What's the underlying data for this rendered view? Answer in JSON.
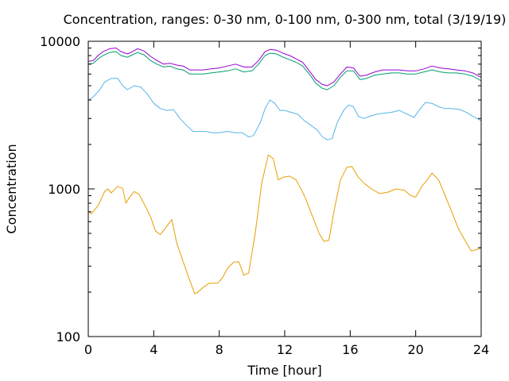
{
  "chart_data": {
    "type": "line",
    "title": "Concentration, ranges: 0-30 nm, 0-100 nm, 0-300 nm, total (3/19/19)",
    "xlabel": "Time [hour]",
    "ylabel": "Concentration",
    "xlim": [
      0,
      24
    ],
    "ylim": [
      100,
      10000
    ],
    "yscale": "log",
    "grid": false,
    "xticks": [
      0,
      4,
      8,
      12,
      16,
      20,
      24
    ],
    "xtick_labels": [
      "0",
      "4",
      "8",
      "12",
      "16",
      "20",
      "24"
    ],
    "yticks": [
      100,
      1000,
      10000
    ],
    "ytick_labels": [
      "100",
      "1000",
      "10000"
    ],
    "series": [
      {
        "color": "#e69f00",
        "x": [
          0,
          0.2,
          0.6,
          1.0,
          1.2,
          1.4,
          1.8,
          2.1,
          2.3,
          2.5,
          2.8,
          3.1,
          3.5,
          3.8,
          4.1,
          4.4,
          4.8,
          5.1,
          5.4,
          5.8,
          6.2,
          6.5,
          6.7,
          7.0,
          7.4,
          7.9,
          8.2,
          8.5,
          8.9,
          9.2,
          9.5,
          9.8,
          10.2,
          10.6,
          11.0,
          11.3,
          11.6,
          11.9,
          12.3,
          12.7,
          13.2,
          13.7,
          14.1,
          14.4,
          14.7,
          15.0,
          15.4,
          15.8,
          16.1,
          16.5,
          16.9,
          17.3,
          17.8,
          18.3,
          18.8,
          19.3,
          19.7,
          20.0,
          20.4,
          20.7,
          21.0,
          21.4,
          21.8,
          22.2,
          22.6,
          23.0,
          23.4,
          23.8,
          24.0
        ],
        "y": [
          700,
          680,
          770,
          960,
          1000,
          940,
          1040,
          1010,
          800,
          870,
          960,
          920,
          760,
          650,
          520,
          490,
          560,
          620,
          430,
          320,
          240,
          195,
          200,
          215,
          230,
          230,
          250,
          290,
          320,
          320,
          260,
          270,
          500,
          1100,
          1700,
          1600,
          1150,
          1200,
          1220,
          1150,
          900,
          650,
          500,
          440,
          450,
          700,
          1150,
          1400,
          1420,
          1200,
          1080,
          1000,
          930,
          950,
          1000,
          980,
          900,
          880,
          1050,
          1150,
          1280,
          1150,
          900,
          700,
          540,
          450,
          380,
          390,
          400
        ]
      },
      {
        "color": "#56b4e9",
        "x": [
          0,
          0.3,
          0.7,
          1.0,
          1.4,
          1.8,
          2.1,
          2.4,
          2.8,
          3.2,
          3.6,
          4.0,
          4.4,
          4.8,
          5.2,
          5.6,
          6.0,
          6.4,
          6.8,
          7.2,
          7.6,
          8.0,
          8.5,
          9.0,
          9.4,
          9.8,
          10.1,
          10.5,
          10.8,
          11.1,
          11.4,
          11.7,
          12.0,
          12.4,
          12.8,
          13.2,
          13.6,
          14.0,
          14.3,
          14.6,
          14.9,
          15.2,
          15.6,
          15.9,
          16.2,
          16.5,
          16.8,
          17.2,
          17.6,
          18.0,
          18.5,
          19.0,
          19.5,
          19.9,
          20.2,
          20.6,
          21.0,
          21.4,
          21.8,
          22.2,
          22.7,
          23.1,
          23.5,
          24.0
        ],
        "y": [
          4000,
          4200,
          4700,
          5300,
          5600,
          5600,
          5000,
          4700,
          5000,
          4900,
          4400,
          3800,
          3500,
          3400,
          3450,
          3000,
          2700,
          2450,
          2450,
          2450,
          2400,
          2400,
          2450,
          2400,
          2400,
          2250,
          2300,
          2800,
          3500,
          4000,
          3800,
          3400,
          3400,
          3300,
          3200,
          2900,
          2700,
          2500,
          2250,
          2150,
          2200,
          2800,
          3400,
          3700,
          3600,
          3100,
          3000,
          3100,
          3200,
          3250,
          3300,
          3400,
          3200,
          3050,
          3400,
          3850,
          3800,
          3600,
          3500,
          3500,
          3450,
          3300,
          3100,
          2900
        ]
      },
      {
        "color": "#009e73",
        "x": [
          0,
          0.3,
          0.6,
          0.9,
          1.3,
          1.7,
          2.0,
          2.4,
          2.7,
          3.0,
          3.4,
          3.8,
          4.2,
          4.6,
          5.0,
          5.4,
          5.8,
          6.2,
          6.6,
          7.0,
          7.5,
          8.0,
          8.5,
          9.0,
          9.5,
          10.0,
          10.4,
          10.8,
          11.1,
          11.5,
          11.9,
          12.3,
          12.7,
          13.1,
          13.5,
          13.9,
          14.3,
          14.6,
          15.0,
          15.4,
          15.8,
          16.2,
          16.6,
          17.0,
          17.5,
          18.0,
          18.5,
          19.0,
          19.5,
          20.0,
          20.5,
          21.0,
          21.5,
          22.0,
          22.5,
          23.0,
          23.5,
          24.0
        ],
        "y": [
          7000,
          7100,
          7600,
          8000,
          8400,
          8500,
          8000,
          7800,
          8100,
          8400,
          8100,
          7400,
          7000,
          6700,
          6800,
          6500,
          6400,
          6000,
          6000,
          6000,
          6100,
          6200,
          6300,
          6500,
          6200,
          6300,
          7000,
          8000,
          8300,
          8200,
          7800,
          7500,
          7200,
          6800,
          6000,
          5200,
          4800,
          4700,
          5000,
          5700,
          6300,
          6300,
          5500,
          5600,
          5900,
          6000,
          6100,
          6100,
          6000,
          6000,
          6200,
          6400,
          6200,
          6100,
          6100,
          6000,
          5800,
          5400
        ]
      },
      {
        "color": "#9400d3",
        "x": [
          0,
          0.3,
          0.6,
          0.9,
          1.3,
          1.7,
          2.0,
          2.4,
          2.7,
          3.0,
          3.4,
          3.8,
          4.2,
          4.6,
          5.0,
          5.4,
          5.8,
          6.2,
          6.6,
          7.0,
          7.5,
          8.0,
          8.5,
          9.0,
          9.5,
          10.0,
          10.4,
          10.8,
          11.1,
          11.5,
          11.9,
          12.3,
          12.7,
          13.1,
          13.5,
          13.9,
          14.3,
          14.6,
          15.0,
          15.4,
          15.8,
          16.2,
          16.6,
          17.0,
          17.5,
          18.0,
          18.5,
          19.0,
          19.5,
          20.0,
          20.5,
          21.0,
          21.5,
          22.0,
          22.5,
          23.0,
          23.5,
          24.0
        ],
        "y": [
          7300,
          7400,
          8000,
          8500,
          8900,
          9000,
          8500,
          8200,
          8500,
          8900,
          8600,
          7900,
          7400,
          7000,
          7100,
          6900,
          6800,
          6400,
          6400,
          6400,
          6500,
          6600,
          6800,
          7000,
          6700,
          6700,
          7400,
          8500,
          8800,
          8700,
          8300,
          8000,
          7600,
          7200,
          6300,
          5500,
          5100,
          5000,
          5300,
          6000,
          6700,
          6600,
          5800,
          5900,
          6200,
          6400,
          6400,
          6400,
          6300,
          6300,
          6500,
          6800,
          6600,
          6500,
          6400,
          6300,
          6100,
          5700
        ]
      }
    ]
  }
}
